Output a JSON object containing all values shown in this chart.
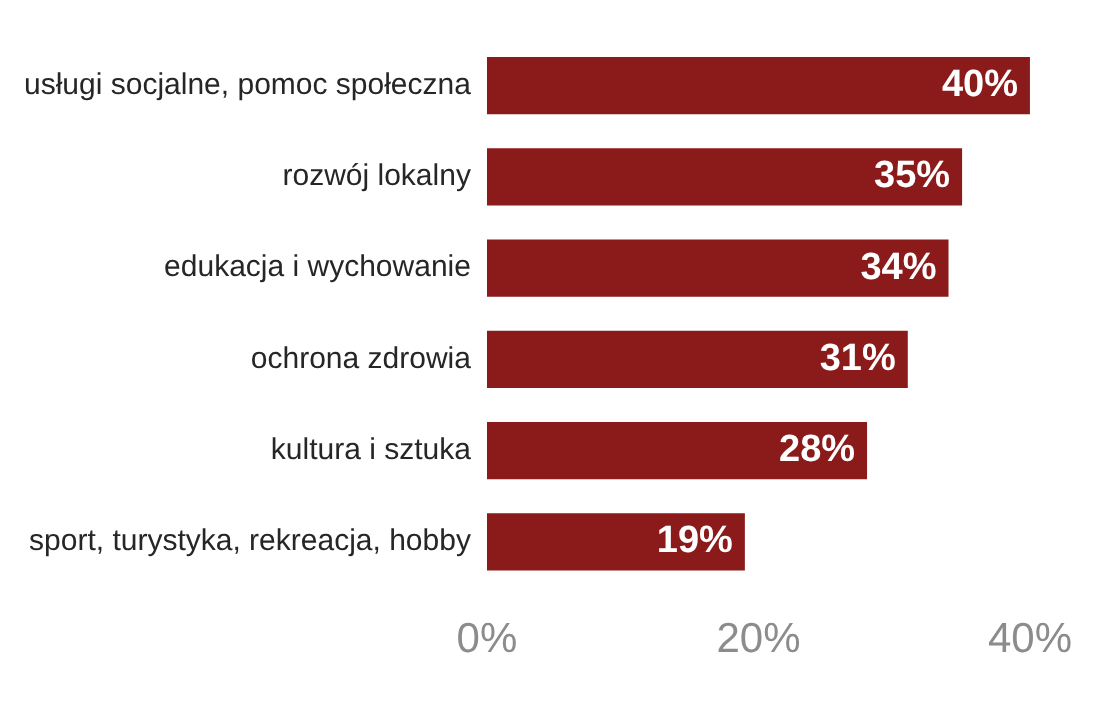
{
  "chart_data": {
    "type": "bar",
    "orientation": "horizontal",
    "categories": [
      "usługi socjalne, pomoc społeczna",
      "rozwój lokalny",
      "edukacja i wychowanie",
      "ochrona zdrowia",
      "kultura i sztuka",
      "sport, turystyka, rekreacja, hobby"
    ],
    "values": [
      40,
      35,
      34,
      31,
      28,
      19
    ],
    "value_labels": [
      "40%",
      "35%",
      "34%",
      "31%",
      "28%",
      "19%"
    ],
    "color": "#8b1a1a",
    "xlim": [
      0,
      40
    ],
    "xticks": [
      {
        "value": 0,
        "label": "0%"
      },
      {
        "value": 20,
        "label": "20%"
      },
      {
        "value": 40,
        "label": "40%"
      }
    ],
    "grid": false,
    "legend": false
  }
}
